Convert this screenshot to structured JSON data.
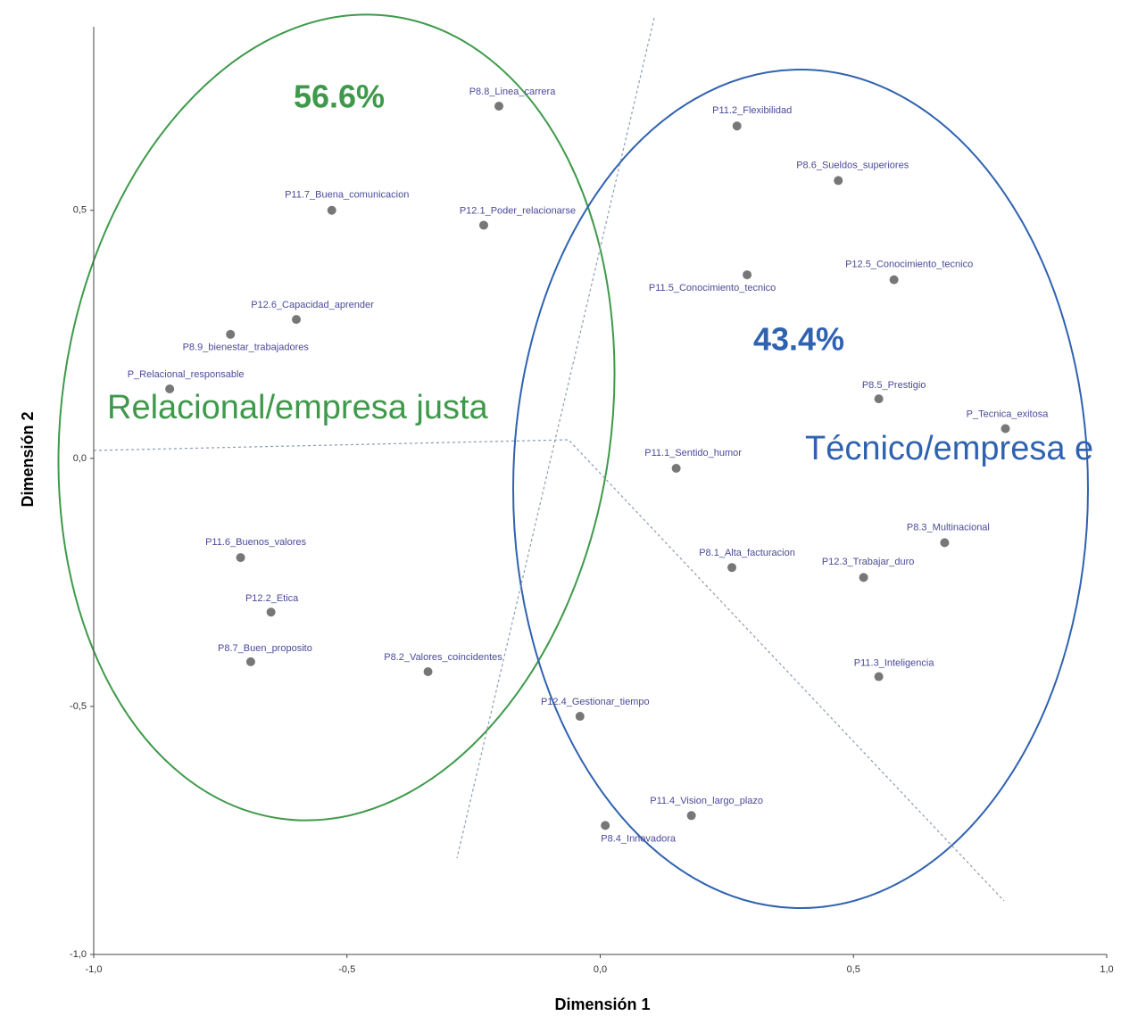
{
  "chart_data": {
    "type": "scatter",
    "xlabel": "Dimensión 1",
    "ylabel": "Dimensión 2",
    "xlim": [
      -1.0,
      1.0
    ],
    "ylim": [
      -1.0,
      0.87
    ],
    "xticks": [
      {
        "value": -1.0,
        "label": "-1,0"
      },
      {
        "value": -0.5,
        "label": "-0,5"
      },
      {
        "value": 0,
        "label": "0,0"
      },
      {
        "value": 0.5,
        "label": "0,5"
      },
      {
        "value": 1.0,
        "label": "1,0"
      }
    ],
    "yticks": [
      {
        "value": -1.0,
        "label": "-1,0"
      },
      {
        "value": -0.5,
        "label": "-0,5"
      },
      {
        "value": 0,
        "label": "0,0"
      },
      {
        "value": 0.5,
        "label": "0,5"
      }
    ],
    "color": "#777777",
    "labels": [
      "P8.8_Linea_carrera",
      "P11.2_Flexibilidad",
      "P8.6_Sueldos_superiores",
      "P11.7_Buena_comunicacion",
      "P12.1_Poder_relacionarse",
      "P11.5_Conocimiento_tecnico",
      "P12.5_Conocimiento_tecnico",
      "P12.6_Capacidad_aprender",
      "P8.9_bienestar_trabajadores",
      "P_Relacional_responsable",
      "P8.5_Prestigio",
      "P_Tecnica_exitosa",
      "P11.1_Sentido_humor",
      "P11.6_Buenos_valores",
      "P8.3_Multinacional",
      "P8.1_Alta_facturacion",
      "P12.3_Trabajar_duro",
      "P12.2_Etica",
      "P8.7_Buen_proposito",
      "P8.2_Valores_coincidentes",
      "P11.3_Inteligencia",
      "P12.4_Gestionar_tiempo",
      "P11.4_Vision_largo_plazo",
      "P8.4_Innovadora"
    ],
    "x": [
      -0.2,
      0.27,
      0.47,
      -0.53,
      -0.23,
      0.29,
      0.58,
      -0.6,
      -0.73,
      -0.85,
      0.55,
      0.8,
      0.15,
      -0.71,
      0.68,
      0.26,
      0.52,
      -0.65,
      -0.69,
      -0.34,
      0.55,
      -0.04,
      0.18,
      0.01
    ],
    "values": [
      0.71,
      0.67,
      0.56,
      0.5,
      0.47,
      0.37,
      0.36,
      0.28,
      0.25,
      0.14,
      0.12,
      0.06,
      -0.02,
      -0.2,
      -0.17,
      -0.22,
      -0.24,
      -0.31,
      -0.41,
      -0.43,
      -0.44,
      -0.52,
      -0.72,
      -0.74
    ],
    "annotations": [
      "56.6%",
      "43.4%",
      "Relacional/empresa justa",
      "Técnico/empresa e"
    ]
  }
}
